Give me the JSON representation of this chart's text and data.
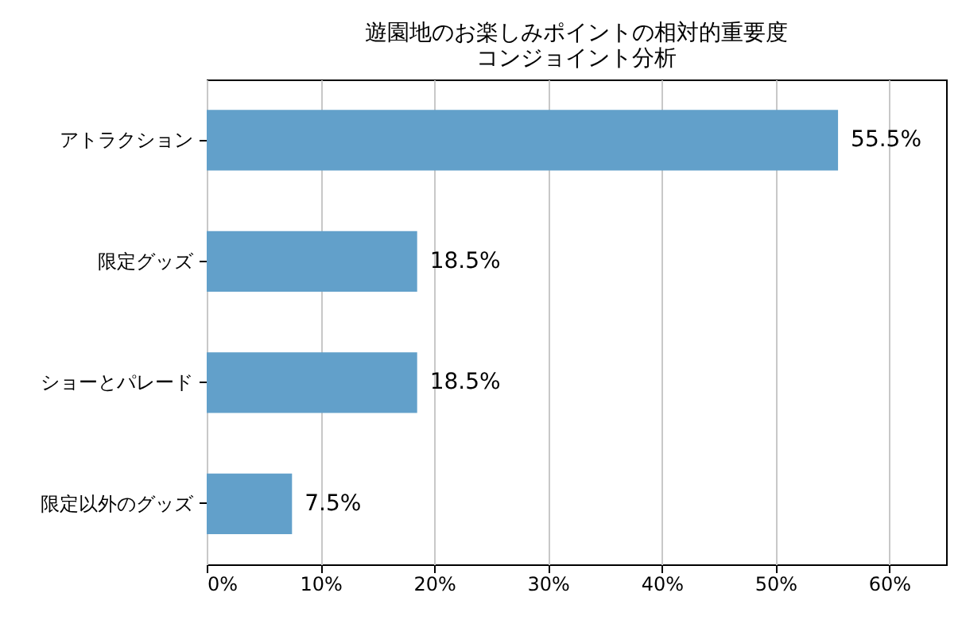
{
  "chart_data": {
    "type": "bar",
    "orientation": "horizontal",
    "title": "遊園地のお楽しみポイントの相対的重要度",
    "subtitle": "コンジョイント分析",
    "categories": [
      "アトラクション",
      "限定グッズ",
      "ショーとパレード",
      "限定以外のグッズ"
    ],
    "values": [
      55.5,
      18.5,
      18.5,
      7.5
    ],
    "value_labels": [
      "55.5%",
      "18.5%",
      "18.5%",
      "7.5%"
    ],
    "color": "#62a0ca",
    "xlim": [
      0,
      65
    ],
    "xticks": [
      {
        "value": 0,
        "label": "0%"
      },
      {
        "value": 10,
        "label": "10%"
      },
      {
        "value": 20,
        "label": "20%"
      },
      {
        "value": 30,
        "label": "30%"
      },
      {
        "value": 40,
        "label": "40%"
      },
      {
        "value": 50,
        "label": "50%"
      },
      {
        "value": 60,
        "label": "60%"
      }
    ],
    "grid": "x"
  }
}
